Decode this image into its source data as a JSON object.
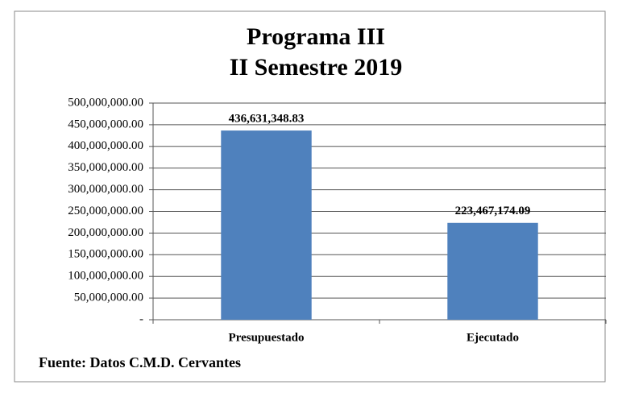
{
  "chart_data": {
    "type": "bar",
    "title": "Programa III",
    "subtitle": "II Semestre 2019",
    "categories": [
      "Presupuestado",
      "Ejecutado"
    ],
    "values": [
      436631348.83,
      223467174.09
    ],
    "value_labels": [
      "436,631,348.83",
      "223,467,174.09"
    ],
    "color": "#4f81bd",
    "ylim": [
      0,
      500000000
    ],
    "yticks": [
      {
        "value": 0,
        "label": "-"
      },
      {
        "value": 50000000,
        "label": "50,000,000.00"
      },
      {
        "value": 100000000,
        "label": "100,000,000.00"
      },
      {
        "value": 150000000,
        "label": "150,000,000.00"
      },
      {
        "value": 200000000,
        "label": "200,000,000.00"
      },
      {
        "value": 250000000,
        "label": "250,000,000.00"
      },
      {
        "value": 300000000,
        "label": "300,000,000.00"
      },
      {
        "value": 350000000,
        "label": "350,000,000.00"
      },
      {
        "value": 400000000,
        "label": "400,000,000.00"
      },
      {
        "value": 450000000,
        "label": "450,000,000.00"
      },
      {
        "value": 500000000,
        "label": "500,000,000.00"
      }
    ],
    "grid": true,
    "source": "Fuente: Datos C.M.D. Cervantes"
  }
}
